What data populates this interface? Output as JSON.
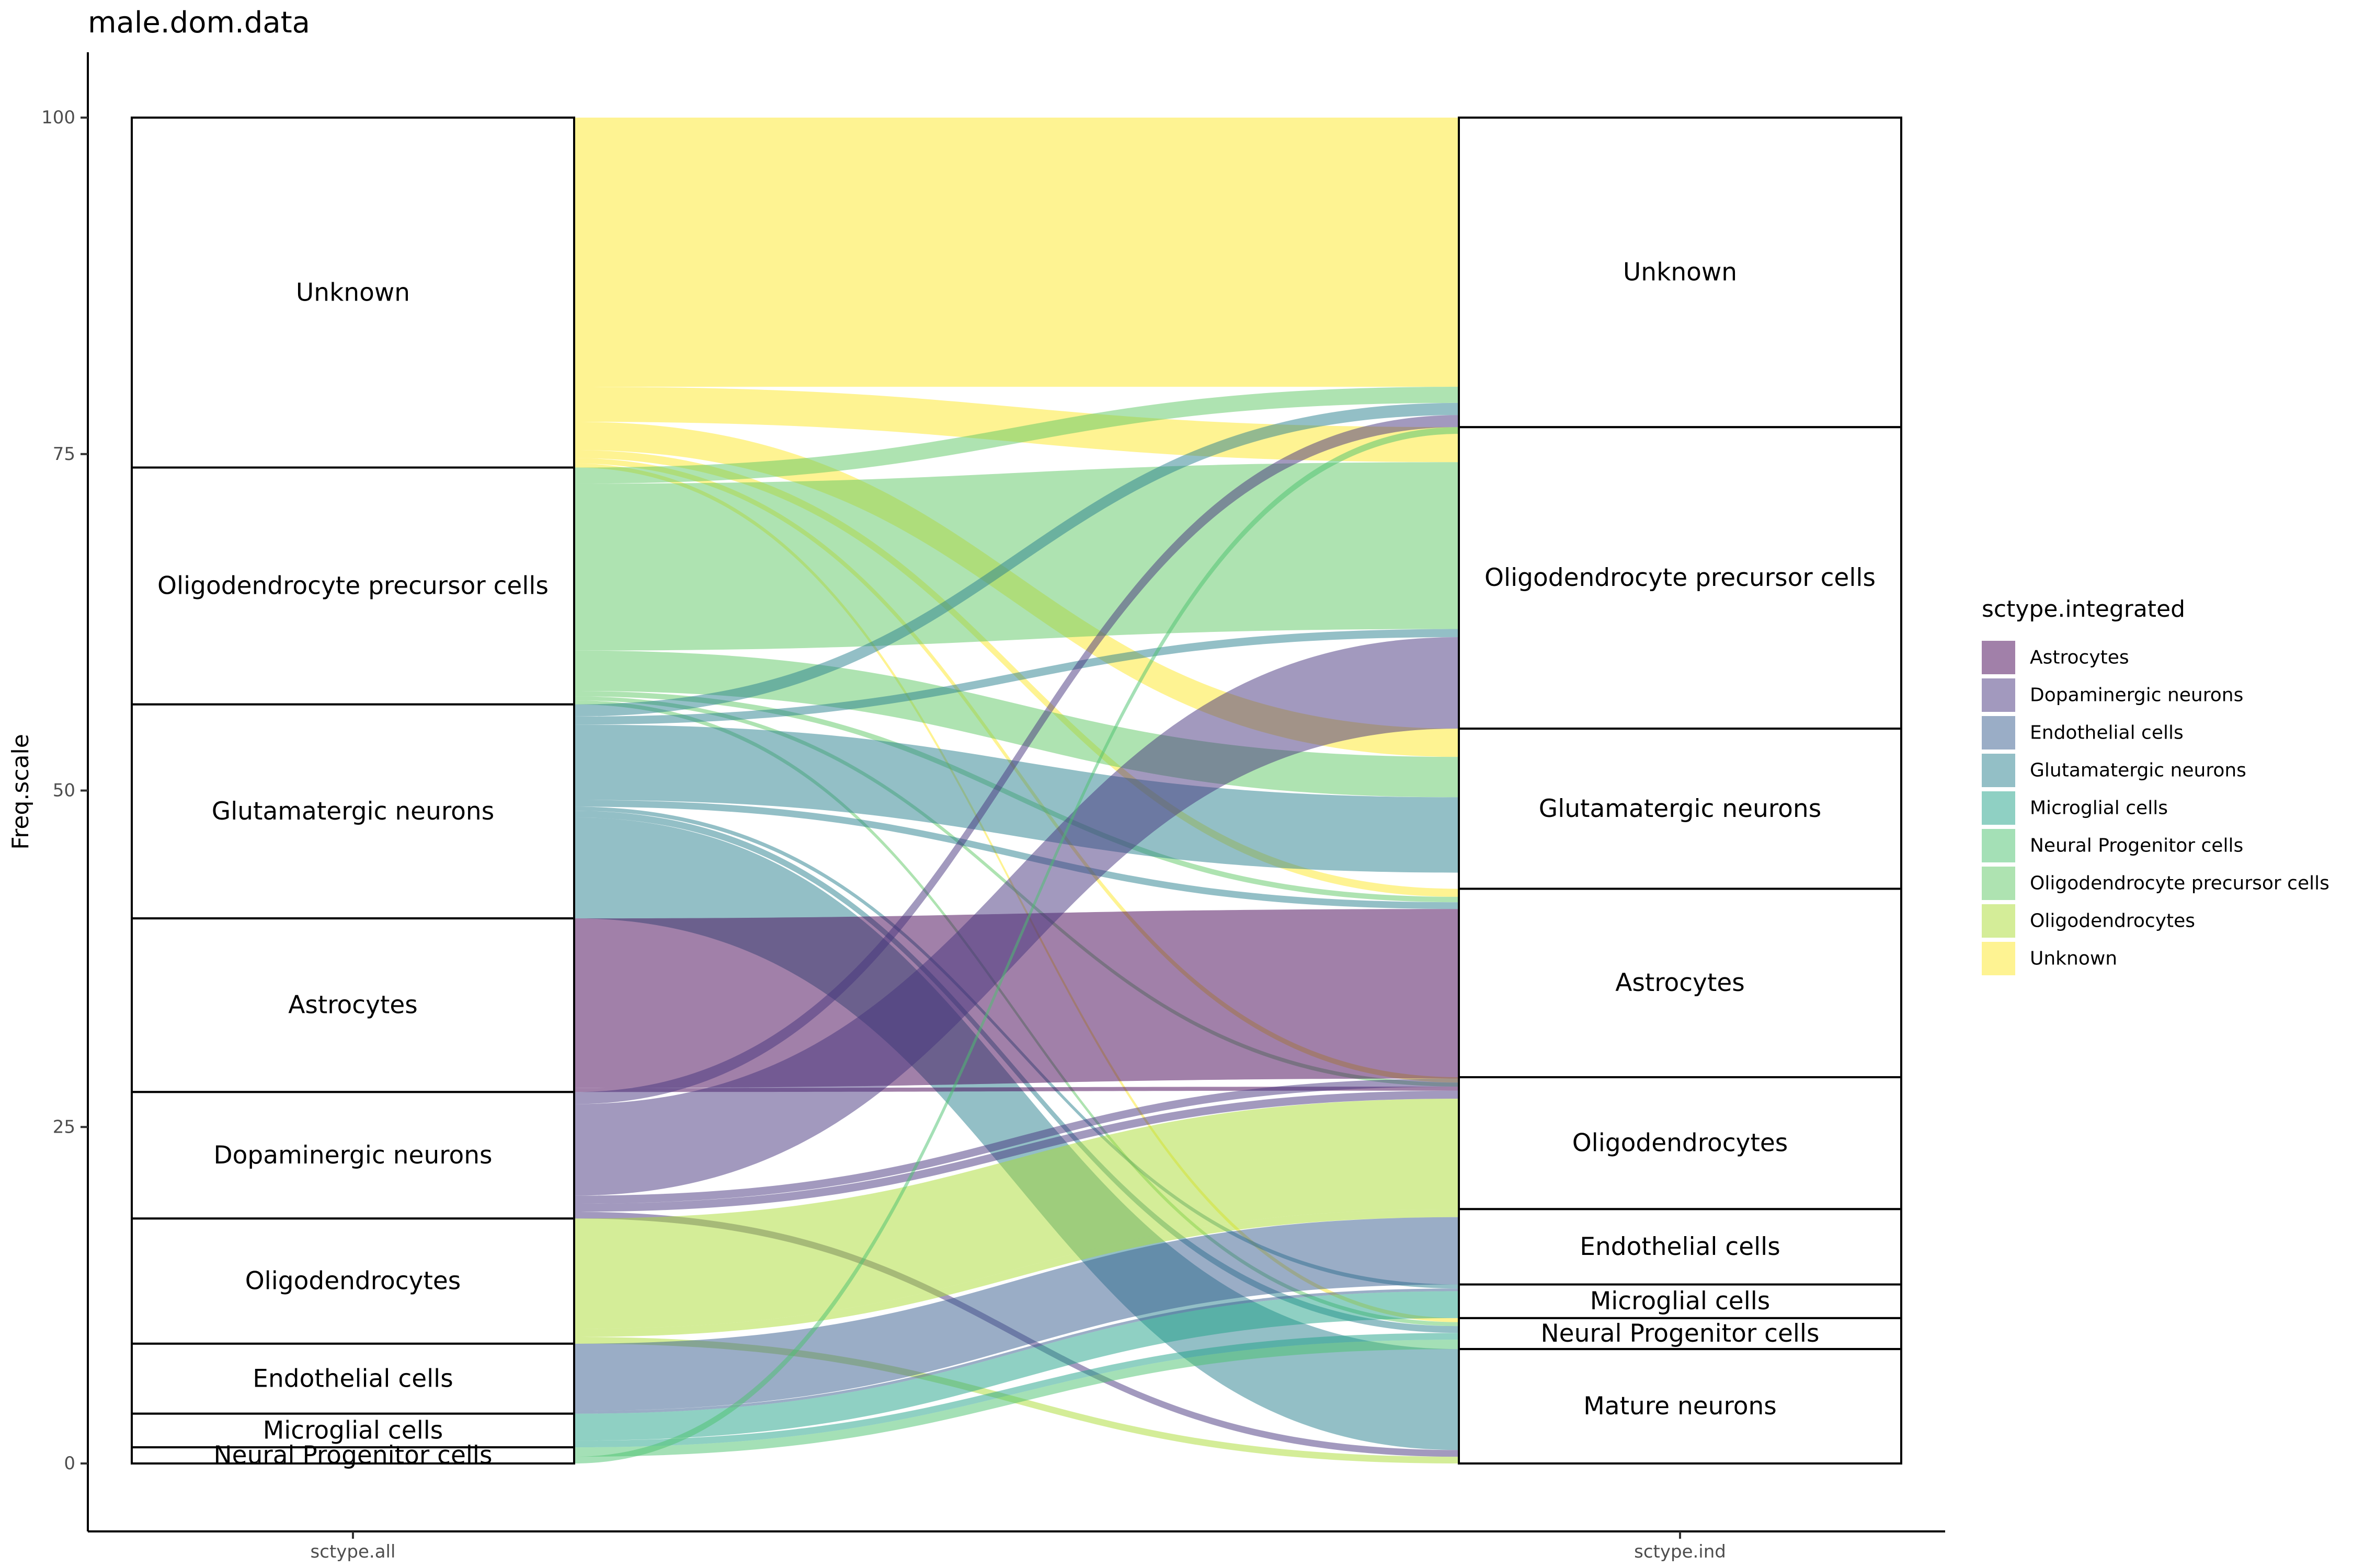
{
  "chart_data": {
    "type": "alluvial",
    "title": "male.dom.data",
    "ylabel": "Freq.scale",
    "xlabel": "",
    "ylim": [
      0,
      100
    ],
    "y_ticks": [
      0,
      25,
      50,
      75,
      100
    ],
    "axes": [
      "sctype.all",
      "sctype.ind"
    ],
    "grid": false,
    "legend_position": "right",
    "legend": {
      "title": "sctype.integrated",
      "entries": [
        {
          "name": "Astrocytes",
          "color": "#440154"
        },
        {
          "name": "Dopaminergic neurons",
          "color": "#46337E"
        },
        {
          "name": "Endothelial cells",
          "color": "#365C8D"
        },
        {
          "name": "Glutamatergic neurons",
          "color": "#277F8E"
        },
        {
          "name": "Microglial cells",
          "color": "#1FA187"
        },
        {
          "name": "Neural Progenitor cells",
          "color": "#4AC16D"
        },
        {
          "name": "Oligodendrocyte precursor cells",
          "color": "#5DC863"
        },
        {
          "name": "Oligodendrocytes",
          "color": "#AADC32"
        },
        {
          "name": "Unknown",
          "color": "#FDE725"
        }
      ]
    },
    "strata_left": [
      {
        "label": "Unknown",
        "value": 26.0
      },
      {
        "label": "Oligodendrocyte precursor cells",
        "value": 17.6
      },
      {
        "label": "Glutamatergic neurons",
        "value": 15.9
      },
      {
        "label": "Astrocytes",
        "value": 12.9
      },
      {
        "label": "Dopaminergic neurons",
        "value": 9.4
      },
      {
        "label": "Oligodendrocytes",
        "value": 9.3
      },
      {
        "label": "Endothelial cells",
        "value": 5.2
      },
      {
        "label": "Microglial cells",
        "value": 2.5
      },
      {
        "label": "Neural Progenitor cells",
        "value": 1.2
      }
    ],
    "strata_right": [
      {
        "label": "Unknown",
        "value": 23.0
      },
      {
        "label": "Oligodendrocyte precursor cells",
        "value": 22.4
      },
      {
        "label": "Glutamatergic neurons",
        "value": 11.9
      },
      {
        "label": "Astrocytes",
        "value": 14.0
      },
      {
        "label": "Oligodendrocytes",
        "value": 9.8
      },
      {
        "label": "Endothelial cells",
        "value": 5.6
      },
      {
        "label": "Microglial cells",
        "value": 2.5
      },
      {
        "label": "Neural Progenitor cells",
        "value": 2.3
      },
      {
        "label": "Mature neurons",
        "value": 8.5
      }
    ],
    "flows": [
      {
        "from": "Unknown",
        "to": "Unknown",
        "group": "Unknown",
        "value": 20.0
      },
      {
        "from": "Unknown",
        "to": "Oligodendrocyte precursor cells",
        "group": "Unknown",
        "value": 2.6
      },
      {
        "from": "Unknown",
        "to": "Glutamatergic neurons",
        "group": "Unknown",
        "value": 2.1
      },
      {
        "from": "Unknown",
        "to": "Astrocytes",
        "group": "Unknown",
        "value": 0.6
      },
      {
        "from": "Unknown",
        "to": "Oligodendrocytes",
        "group": "Unknown",
        "value": 0.4
      },
      {
        "from": "Unknown",
        "to": "Neural Progenitor cells",
        "group": "Unknown",
        "value": 0.3
      },
      {
        "from": "Oligodendrocyte precursor cells",
        "to": "Unknown",
        "group": "Oligodendrocyte precursor cells",
        "value": 1.2
      },
      {
        "from": "Oligodendrocyte precursor cells",
        "to": "Oligodendrocyte precursor cells",
        "group": "Oligodendrocyte precursor cells",
        "value": 12.4
      },
      {
        "from": "Oligodendrocyte precursor cells",
        "to": "Glutamatergic neurons",
        "group": "Oligodendrocyte precursor cells",
        "value": 3.0
      },
      {
        "from": "Oligodendrocyte precursor cells",
        "to": "Astrocytes",
        "group": "Oligodendrocyte precursor cells",
        "value": 0.4
      },
      {
        "from": "Oligodendrocyte precursor cells",
        "to": "Oligodendrocytes",
        "group": "Oligodendrocyte precursor cells",
        "value": 0.3
      },
      {
        "from": "Oligodendrocyte precursor cells",
        "to": "Neural Progenitor cells",
        "group": "Oligodendrocyte precursor cells",
        "value": 0.3
      },
      {
        "from": "Glutamatergic neurons",
        "to": "Unknown",
        "group": "Glutamatergic neurons",
        "value": 0.9
      },
      {
        "from": "Glutamatergic neurons",
        "to": "Oligodendrocyte precursor cells",
        "group": "Glutamatergic neurons",
        "value": 0.6
      },
      {
        "from": "Glutamatergic neurons",
        "to": "Glutamatergic neurons",
        "group": "Glutamatergic neurons",
        "value": 5.6
      },
      {
        "from": "Glutamatergic neurons",
        "to": "Astrocytes",
        "group": "Glutamatergic neurons",
        "value": 0.5
      },
      {
        "from": "Glutamatergic neurons",
        "to": "Microglial cells",
        "group": "Glutamatergic neurons",
        "value": 0.3
      },
      {
        "from": "Glutamatergic neurons",
        "to": "Neural Progenitor cells",
        "group": "Glutamatergic neurons",
        "value": 0.5
      },
      {
        "from": "Glutamatergic neurons",
        "to": "Mature neurons",
        "group": "Glutamatergic neurons",
        "value": 7.5
      },
      {
        "from": "Astrocytes",
        "to": "Astrocytes",
        "group": "Astrocytes",
        "value": 12.6
      },
      {
        "from": "Astrocytes",
        "to": "Oligodendrocytes",
        "group": "Astrocytes",
        "value": 0.3
      },
      {
        "from": "Dopaminergic neurons",
        "to": "Unknown",
        "group": "Dopaminergic neurons",
        "value": 0.9
      },
      {
        "from": "Dopaminergic neurons",
        "to": "Oligodendrocyte precursor cells",
        "group": "Dopaminergic neurons",
        "value": 6.8
      },
      {
        "from": "Dopaminergic neurons",
        "to": "Astrocytes",
        "group": "Dopaminergic neurons",
        "value": 0.6
      },
      {
        "from": "Dopaminergic neurons",
        "to": "Oligodendrocytes",
        "group": "Dopaminergic neurons",
        "value": 0.6
      },
      {
        "from": "Dopaminergic neurons",
        "to": "Mature neurons",
        "group": "Dopaminergic neurons",
        "value": 0.5
      },
      {
        "from": "Oligodendrocytes",
        "to": "Oligodendrocytes",
        "group": "Oligodendrocytes",
        "value": 8.2
      },
      {
        "from": "Oligodendrocytes",
        "to": "Endothelial cells",
        "group": "Oligodendrocytes",
        "value": 0.6
      },
      {
        "from": "Oligodendrocytes",
        "to": "Mature neurons",
        "group": "Oligodendrocytes",
        "value": 0.5
      },
      {
        "from": "Endothelial cells",
        "to": "Endothelial cells",
        "group": "Endothelial cells",
        "value": 5.0
      },
      {
        "from": "Endothelial cells",
        "to": "Microglial cells",
        "group": "Endothelial cells",
        "value": 0.2
      },
      {
        "from": "Microglial cells",
        "to": "Microglial cells",
        "group": "Microglial cells",
        "value": 2.0
      },
      {
        "from": "Microglial cells",
        "to": "Neural Progenitor cells",
        "group": "Microglial cells",
        "value": 0.5
      },
      {
        "from": "Neural Progenitor cells",
        "to": "Neural Progenitor cells",
        "group": "Neural Progenitor cells",
        "value": 0.7
      },
      {
        "from": "Neural Progenitor cells",
        "to": "Oligodendrocyte precursor cells",
        "group": "Neural Progenitor cells",
        "value": 0.0
      },
      {
        "from": "Neural Progenitor cells",
        "to": "Mature neurons",
        "group": "Neural Progenitor cells",
        "value": 0.0
      },
      {
        "from": "Neural Progenitor cells",
        "to": "Unknown",
        "group": "Neural Progenitor cells",
        "value": 0.5
      }
    ]
  }
}
